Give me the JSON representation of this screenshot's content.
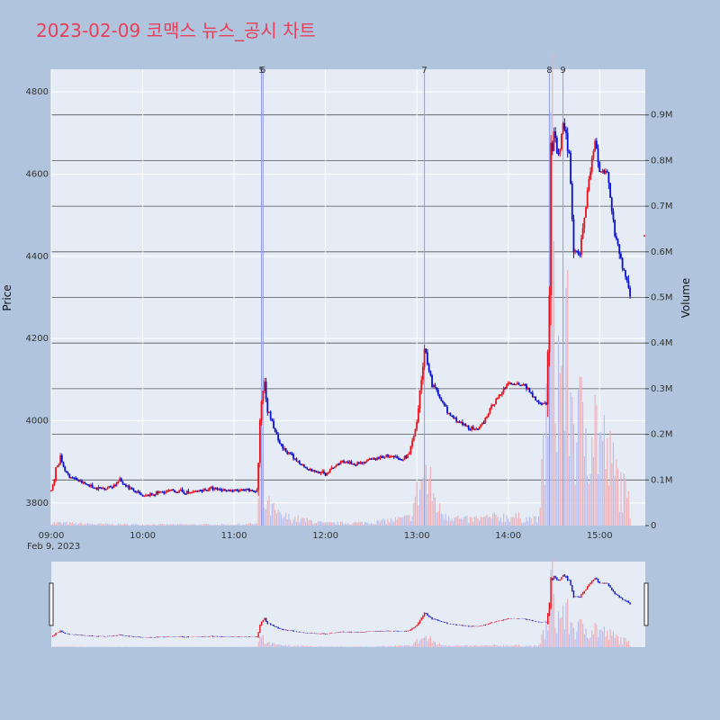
{
  "chart_data": {
    "type": "candlestick",
    "title": "2023-02-09 코맥스 뉴스_공시 차트",
    "ylabel": "Price",
    "y2label": "Volume",
    "date_label": "Feb 9, 2023",
    "x_range": [
      "09:00",
      "15:30"
    ],
    "ylim": [
      3745,
      4855
    ],
    "y2lim": [
      0,
      1000000
    ],
    "x_ticks": [
      "09:00",
      "10:00",
      "11:00",
      "12:00",
      "13:00",
      "14:00",
      "15:00"
    ],
    "y_ticks": [
      3800,
      4000,
      4200,
      4400,
      4600,
      4800
    ],
    "y2_ticks": [
      "0",
      "0.1M",
      "0.2M",
      "0.3M",
      "0.4M",
      "0.5M",
      "0.6M",
      "0.7M",
      "0.8M",
      "0.9M"
    ],
    "y2_tick_values": [
      0,
      100000,
      200000,
      300000,
      400000,
      500000,
      600000,
      700000,
      800000,
      900000
    ],
    "news_markers": [
      {
        "label": "5",
        "time": "11:18"
      },
      {
        "label": "6",
        "time": "11:19"
      },
      {
        "label": "7",
        "time": "13:05"
      },
      {
        "label": "8",
        "time": "14:27"
      },
      {
        "label": "9",
        "time": "14:36"
      }
    ],
    "price_path": [
      [
        "09:00",
        3830
      ],
      [
        "09:03",
        3880
      ],
      [
        "09:06",
        3910
      ],
      [
        "09:10",
        3870
      ],
      [
        "09:20",
        3850
      ],
      [
        "09:30",
        3835
      ],
      [
        "09:40",
        3840
      ],
      [
        "09:45",
        3855
      ],
      [
        "09:50",
        3840
      ],
      [
        "10:00",
        3815
      ],
      [
        "10:10",
        3825
      ],
      [
        "10:20",
        3830
      ],
      [
        "10:30",
        3825
      ],
      [
        "10:45",
        3835
      ],
      [
        "11:00",
        3830
      ],
      [
        "11:15",
        3830
      ],
      [
        "11:18",
        4050
      ],
      [
        "11:20",
        4100
      ],
      [
        "11:22",
        4030
      ],
      [
        "11:30",
        3940
      ],
      [
        "11:40",
        3905
      ],
      [
        "11:50",
        3880
      ],
      [
        "12:00",
        3870
      ],
      [
        "12:10",
        3900
      ],
      [
        "12:20",
        3895
      ],
      [
        "12:30",
        3905
      ],
      [
        "12:40",
        3915
      ],
      [
        "12:50",
        3905
      ],
      [
        "12:55",
        3920
      ],
      [
        "13:00",
        3990
      ],
      [
        "13:03",
        4100
      ],
      [
        "13:05",
        4180
      ],
      [
        "13:10",
        4090
      ],
      [
        "13:15",
        4060
      ],
      [
        "13:20",
        4020
      ],
      [
        "13:30",
        3990
      ],
      [
        "13:40",
        3975
      ],
      [
        "13:50",
        4040
      ],
      [
        "14:00",
        4090
      ],
      [
        "14:10",
        4090
      ],
      [
        "14:20",
        4045
      ],
      [
        "14:25",
        4040
      ],
      [
        "14:27",
        4300
      ],
      [
        "14:28",
        4640
      ],
      [
        "14:30",
        4690
      ],
      [
        "14:33",
        4640
      ],
      [
        "14:36",
        4720
      ],
      [
        "14:40",
        4650
      ],
      [
        "14:43",
        4420
      ],
      [
        "14:47",
        4410
      ],
      [
        "14:52",
        4560
      ],
      [
        "14:57",
        4680
      ],
      [
        "15:00",
        4610
      ],
      [
        "15:05",
        4600
      ],
      [
        "15:10",
        4460
      ],
      [
        "15:15",
        4380
      ],
      [
        "15:20",
        4300
      ]
    ],
    "volume_path": [
      [
        "09:00",
        8000
      ],
      [
        "09:30",
        4000
      ],
      [
        "10:00",
        3000
      ],
      [
        "10:30",
        3000
      ],
      [
        "11:00",
        3000
      ],
      [
        "11:15",
        5000
      ],
      [
        "11:18",
        160000
      ],
      [
        "11:20",
        60000
      ],
      [
        "11:30",
        25000
      ],
      [
        "12:00",
        6000
      ],
      [
        "12:30",
        8000
      ],
      [
        "12:55",
        20000
      ],
      [
        "13:00",
        80000
      ],
      [
        "13:05",
        140000
      ],
      [
        "13:15",
        40000
      ],
      [
        "13:30",
        15000
      ],
      [
        "14:00",
        25000
      ],
      [
        "14:20",
        15000
      ],
      [
        "14:27",
        400000
      ],
      [
        "14:28",
        960000
      ],
      [
        "14:32",
        380000
      ],
      [
        "14:36",
        500000
      ],
      [
        "14:45",
        250000
      ],
      [
        "14:55",
        300000
      ],
      [
        "15:05",
        180000
      ],
      [
        "15:15",
        100000
      ],
      [
        "15:20",
        50000
      ]
    ],
    "after_hours_price": 4450,
    "after_hours_volume_label": ""
  },
  "colors": {
    "up": "#e8101a",
    "down": "#0a10d0",
    "volume_up": "#f0b0b8",
    "volume_down": "#b8bff0",
    "plot_bg": "#e5ecf6",
    "page_bg": "#b0c4de",
    "news_line": "#8f9bf0"
  }
}
